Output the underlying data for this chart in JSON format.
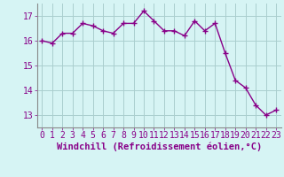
{
  "x": [
    0,
    1,
    2,
    3,
    4,
    5,
    6,
    7,
    8,
    9,
    10,
    11,
    12,
    13,
    14,
    15,
    16,
    17,
    18,
    19,
    20,
    21,
    22,
    23
  ],
  "y": [
    16.0,
    15.9,
    16.3,
    16.3,
    16.7,
    16.6,
    16.4,
    16.3,
    16.7,
    16.7,
    17.2,
    16.8,
    16.4,
    16.4,
    16.2,
    16.8,
    16.4,
    16.7,
    15.5,
    14.4,
    14.1,
    13.4,
    13.0,
    13.2
  ],
  "line_color": "#880088",
  "marker": "+",
  "marker_size": 4,
  "marker_lw": 1.0,
  "xlabel": "Windchill (Refroidissement éolien,°C)",
  "ylim": [
    12.5,
    17.5
  ],
  "yticks": [
    13,
    14,
    15,
    16,
    17
  ],
  "xticks": [
    0,
    1,
    2,
    3,
    4,
    5,
    6,
    7,
    8,
    9,
    10,
    11,
    12,
    13,
    14,
    15,
    16,
    17,
    18,
    19,
    20,
    21,
    22,
    23
  ],
  "bg_color": "#d6f4f4",
  "grid_color": "#aacece",
  "font_color": "#880088",
  "label_fontsize": 7.5,
  "tick_fontsize": 7
}
